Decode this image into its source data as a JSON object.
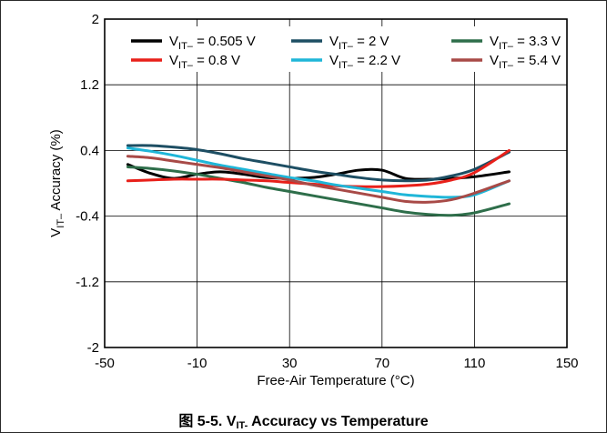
{
  "caption": {
    "figure_no": "图 5-5.",
    "main": "V",
    "sub": "IT-",
    "rest": " Accuracy vs Temperature"
  },
  "chart_data": {
    "type": "line",
    "title": "",
    "xlabel": "Free-Air Temperature (°C)",
    "ylabel": {
      "main": "V",
      "sub": "IT–",
      "rest": " Accuracy (%)"
    },
    "xlim": [
      -50,
      150
    ],
    "ylim": [
      -2,
      2
    ],
    "xticks": [
      -50,
      -10,
      30,
      70,
      110,
      150
    ],
    "yticks": [
      -2,
      -1.2,
      -0.4,
      0.4,
      1.2,
      2
    ],
    "xtick_labels": [
      "-50",
      "-10",
      "30",
      "70",
      "110",
      "150"
    ],
    "ytick_labels": [
      "-2",
      "-1.2",
      "-0.4",
      "0.4",
      "1.2",
      "2"
    ],
    "grid": true,
    "legend_position": "top",
    "series": [
      {
        "name": {
          "main": "V",
          "sub": "IT–",
          "rest": " = 0.505 V"
        },
        "color": "#000000",
        "x": [
          -40,
          -30,
          -20,
          -10,
          0,
          10,
          20,
          30,
          40,
          50,
          60,
          70,
          80,
          90,
          100,
          110,
          125
        ],
        "y": [
          0.23,
          0.12,
          0.06,
          0.11,
          0.14,
          0.11,
          0.07,
          0.06,
          0.07,
          0.11,
          0.16,
          0.16,
          0.06,
          0.05,
          0.06,
          0.08,
          0.14
        ]
      },
      {
        "name": {
          "main": "V",
          "sub": "IT–",
          "rest": " = 2 V"
        },
        "color": "#1d4e63",
        "x": [
          -40,
          -30,
          -20,
          -10,
          0,
          10,
          20,
          30,
          40,
          50,
          60,
          70,
          80,
          90,
          100,
          110,
          125
        ],
        "y": [
          0.46,
          0.46,
          0.44,
          0.41,
          0.36,
          0.3,
          0.25,
          0.2,
          0.15,
          0.11,
          0.07,
          0.04,
          0.03,
          0.04,
          0.09,
          0.17,
          0.38
        ]
      },
      {
        "name": {
          "main": "V",
          "sub": "IT–",
          "rest": " = 3.3 V"
        },
        "color": "#2e6e4a",
        "x": [
          -40,
          -30,
          -20,
          -10,
          0,
          10,
          20,
          30,
          40,
          50,
          60,
          70,
          80,
          90,
          100,
          110,
          125
        ],
        "y": [
          0.2,
          0.18,
          0.15,
          0.11,
          0.06,
          0.01,
          -0.05,
          -0.1,
          -0.15,
          -0.2,
          -0.25,
          -0.3,
          -0.35,
          -0.38,
          -0.39,
          -0.36,
          -0.25
        ]
      },
      {
        "name": {
          "main": "V",
          "sub": "IT–",
          "rest": " = 0.8 V"
        },
        "color": "#e8201a",
        "x": [
          -40,
          -30,
          -20,
          -10,
          0,
          10,
          20,
          30,
          40,
          50,
          60,
          70,
          80,
          90,
          100,
          110,
          125
        ],
        "y": [
          0.03,
          0.04,
          0.05,
          0.05,
          0.05,
          0.04,
          0.03,
          0.01,
          -0.01,
          -0.03,
          -0.04,
          -0.04,
          -0.03,
          -0.01,
          0.04,
          0.13,
          0.4
        ]
      },
      {
        "name": {
          "main": "V",
          "sub": "IT–",
          "rest": " = 2.2 V"
        },
        "color": "#1fb6d8",
        "x": [
          -40,
          -30,
          -20,
          -10,
          0,
          10,
          20,
          30,
          40,
          50,
          60,
          70,
          80,
          90,
          100,
          110,
          125
        ],
        "y": [
          0.43,
          0.39,
          0.34,
          0.28,
          0.22,
          0.17,
          0.12,
          0.07,
          0.03,
          -0.02,
          -0.06,
          -0.1,
          -0.14,
          -0.16,
          -0.17,
          -0.14,
          0.03
        ]
      },
      {
        "name": {
          "main": "V",
          "sub": "IT–",
          "rest": " = 5.4 V"
        },
        "color": "#a84a47",
        "x": [
          -40,
          -30,
          -20,
          -10,
          0,
          10,
          20,
          30,
          40,
          50,
          60,
          70,
          80,
          90,
          100,
          110,
          125
        ],
        "y": [
          0.33,
          0.31,
          0.27,
          0.23,
          0.19,
          0.14,
          0.09,
          0.04,
          -0.02,
          -0.07,
          -0.12,
          -0.17,
          -0.22,
          -0.23,
          -0.2,
          -0.12,
          0.03
        ]
      }
    ]
  }
}
